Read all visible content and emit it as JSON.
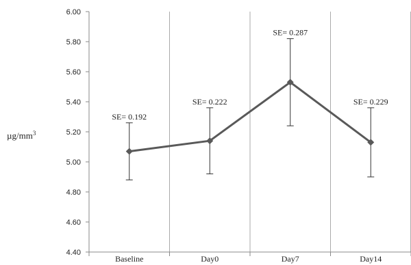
{
  "chart_data": {
    "type": "line",
    "categories": [
      "Baseline",
      "Day0",
      "Day7",
      "Day14"
    ],
    "values": [
      5.07,
      5.14,
      5.53,
      5.13
    ],
    "error_low": [
      4.88,
      4.92,
      5.24,
      4.9
    ],
    "error_high": [
      5.26,
      5.36,
      5.82,
      5.36
    ],
    "annotations": [
      "SE= 0.192",
      "SE= 0.222",
      "SE= 0.287",
      "SE= 0.229"
    ],
    "yticks": [
      "6.00",
      "5.80",
      "5.60",
      "5.40",
      "5.20",
      "5.00",
      "4.80",
      "4.60",
      "4.40"
    ],
    "ylabel": "µg/mm",
    "ylabel_superscript": "3",
    "ylim": [
      4.4,
      6.0
    ],
    "grid": "vertical",
    "title": "",
    "xlabel": "",
    "colors": {
      "line": "#595959",
      "marker": "#595959",
      "error": "#333333",
      "axis": "#888888",
      "grid": "#aaaaaa"
    }
  }
}
